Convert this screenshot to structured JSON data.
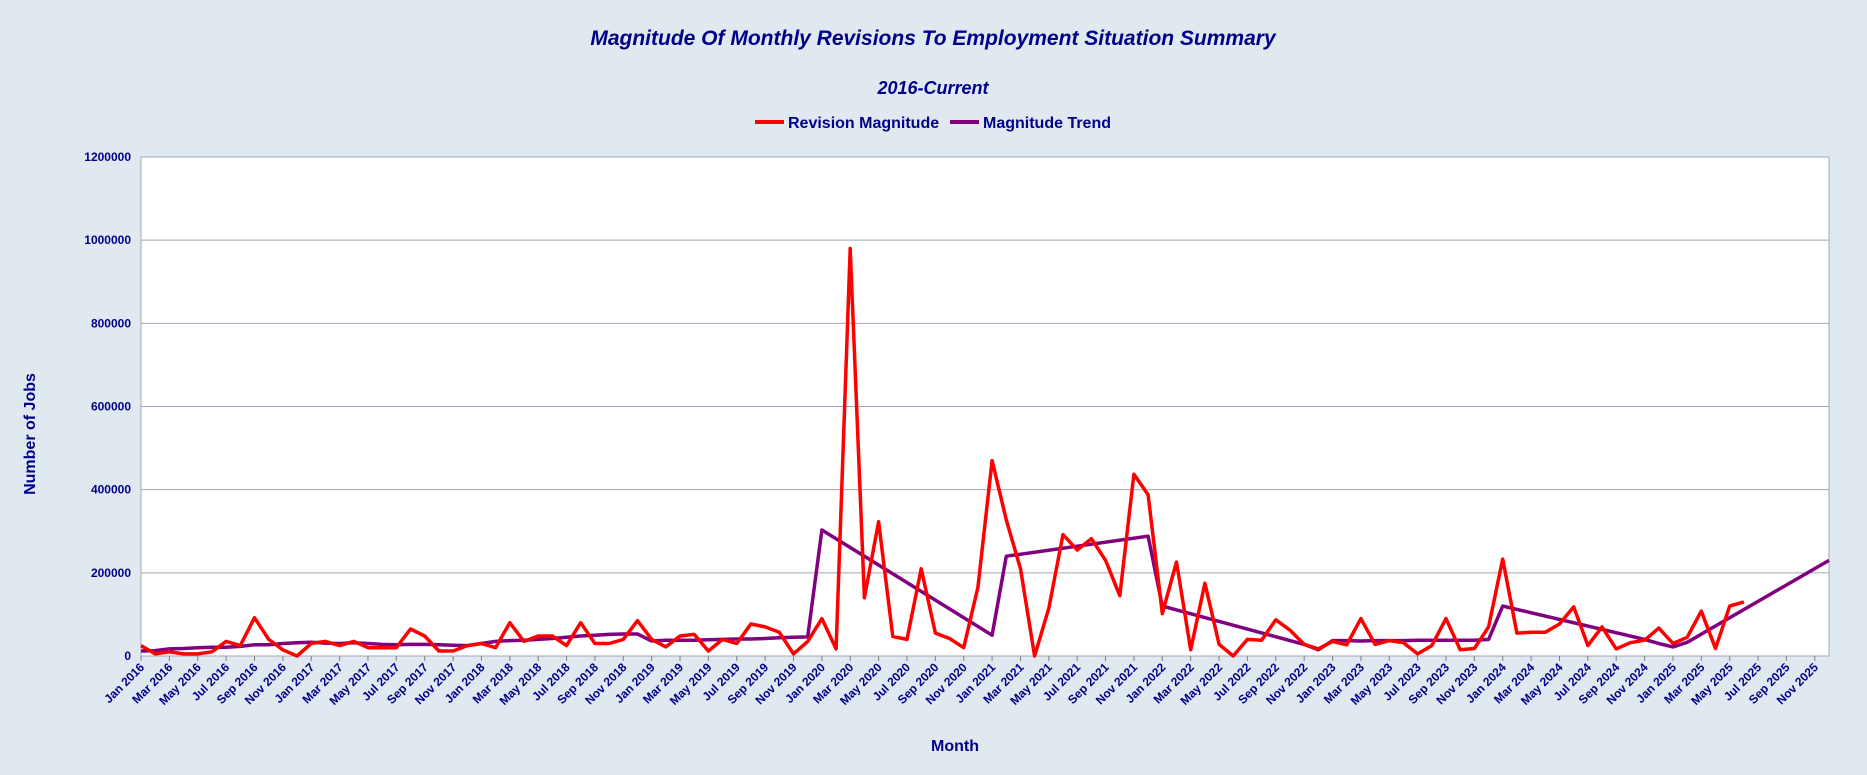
{
  "chart_data": {
    "type": "line",
    "title": "Magnitude Of Monthly Revisions To Employment Situation Summary",
    "subtitle": "2016-Current",
    "xlabel": "Month",
    "ylabel": "Number of Jobs",
    "ylim": [
      0,
      1200000
    ],
    "yticks": [
      0,
      200000,
      400000,
      600000,
      800000,
      1000000,
      1200000
    ],
    "x_start": "Jan 2016",
    "x_end": "Dec 2025",
    "xtick_labels": [
      "Jan 2016",
      "Mar 2016",
      "May 2016",
      "Jul 2016",
      "Sep 2016",
      "Nov 2016",
      "Jan 2017",
      "Mar 2017",
      "May 2017",
      "Jul 2017",
      "Sep 2017",
      "Nov 2017",
      "Jan 2018",
      "Mar 2018",
      "May 2018",
      "Jul 2018",
      "Sep 2018",
      "Nov 2018",
      "Jan 2019",
      "Mar 2019",
      "May 2019",
      "Jul 2019",
      "Sep 2019",
      "Nov 2019",
      "Jan 2020",
      "Mar 2020",
      "May 2020",
      "Jul 2020",
      "Sep 2020",
      "Nov 2020",
      "Jan 2021",
      "Mar 2021",
      "May 2021",
      "Jul 2021",
      "Sep 2021",
      "Nov 2021",
      "Jan 2022",
      "Mar 2022",
      "May 2022",
      "Jul 2022",
      "Sep 2022",
      "Nov 2022",
      "Jan 2023",
      "Mar 2023",
      "May 2023",
      "Jul 2023",
      "Sep 2023",
      "Nov 2023",
      "Jan 2024",
      "Mar 2024",
      "May 2024",
      "Jul 2024",
      "Sep 2024",
      "Nov 2024",
      "Jan 2025",
      "Mar 2025",
      "May 2025",
      "Jul 2025",
      "Sep 2025",
      "Nov 2025"
    ],
    "legend_position": "top-center",
    "series": [
      {
        "name": "Revision Magnitude",
        "color": "#ff0000",
        "values": [
          25000,
          5000,
          10000,
          5000,
          5000,
          10000,
          35000,
          25000,
          92000,
          40000,
          15000,
          0,
          30000,
          35000,
          25000,
          35000,
          20000,
          20000,
          20000,
          65000,
          48000,
          12000,
          12000,
          25000,
          30000,
          20000,
          80000,
          35000,
          48000,
          48000,
          25000,
          80000,
          30000,
          30000,
          40000,
          85000,
          40000,
          22000,
          48000,
          52000,
          12000,
          40000,
          30000,
          77000,
          70000,
          57000,
          5000,
          35000,
          90000,
          17000,
          980000,
          140000,
          323000,
          47000,
          40000,
          210000,
          55000,
          42000,
          20000,
          165000,
          470000,
          327000,
          210000,
          0,
          115000,
          292000,
          255000,
          282000,
          230000,
          145000,
          437000,
          388000,
          102000,
          226000,
          15000,
          175000,
          28000,
          0,
          40000,
          38000,
          87000,
          62000,
          28000,
          17000,
          35000,
          27000,
          90000,
          28000,
          37000,
          32000,
          5000,
          25000,
          90000,
          15000,
          18000,
          70000,
          233000,
          55000,
          57000,
          57000,
          77000,
          118000,
          25000,
          70000,
          17000,
          32000,
          38000,
          67000,
          30000,
          45000,
          108000,
          18000,
          120000,
          130000
        ]
      },
      {
        "name": "Magnitude Trend",
        "color": "#800080",
        "points": [
          [
            0,
            12000
          ],
          [
            1,
            13000
          ],
          [
            2,
            17000
          ],
          [
            3,
            18000
          ],
          [
            4,
            20000
          ],
          [
            5,
            21000
          ],
          [
            6,
            21000
          ],
          [
            7,
            23000
          ],
          [
            8,
            27000
          ],
          [
            9,
            27000
          ],
          [
            10,
            30000
          ],
          [
            11,
            32000
          ],
          [
            12,
            33000
          ],
          [
            13,
            31000
          ],
          [
            14,
            30000
          ],
          [
            15,
            32000
          ],
          [
            16,
            30000
          ],
          [
            17,
            28000
          ],
          [
            18,
            27000
          ],
          [
            19,
            28000
          ],
          [
            20,
            28000
          ],
          [
            21,
            27000
          ],
          [
            22,
            26000
          ],
          [
            23,
            25000
          ],
          [
            24,
            30000
          ],
          [
            25,
            35000
          ],
          [
            26,
            37000
          ],
          [
            27,
            38000
          ],
          [
            28,
            40000
          ],
          [
            29,
            42000
          ],
          [
            30,
            45000
          ],
          [
            31,
            48000
          ],
          [
            32,
            50000
          ],
          [
            33,
            52000
          ],
          [
            34,
            53000
          ],
          [
            35,
            53000
          ],
          [
            36,
            36000
          ],
          [
            37,
            38000
          ],
          [
            38,
            38000
          ],
          [
            39,
            38000
          ],
          [
            40,
            39000
          ],
          [
            41,
            40000
          ],
          [
            42,
            41000
          ],
          [
            43,
            41000
          ],
          [
            44,
            42000
          ],
          [
            45,
            44000
          ],
          [
            46,
            45000
          ],
          [
            47,
            46000
          ],
          [
            48,
            303000
          ],
          [
            60,
            50000
          ],
          [
            61,
            240000
          ],
          [
            71,
            288000
          ],
          [
            72,
            120000
          ],
          [
            82,
            28000
          ],
          [
            83,
            15000
          ],
          [
            84,
            37000
          ],
          [
            85,
            37000
          ],
          [
            86,
            36000
          ],
          [
            87,
            37000
          ],
          [
            88,
            37000
          ],
          [
            89,
            37000
          ],
          [
            90,
            38000
          ],
          [
            91,
            38000
          ],
          [
            92,
            38000
          ],
          [
            93,
            38000
          ],
          [
            94,
            38000
          ],
          [
            95,
            40000
          ],
          [
            96,
            120000
          ],
          [
            106,
            40000
          ],
          [
            107,
            30000
          ],
          [
            108,
            22000
          ],
          [
            109,
            33000
          ],
          [
            119,
            230000
          ]
        ]
      }
    ]
  }
}
